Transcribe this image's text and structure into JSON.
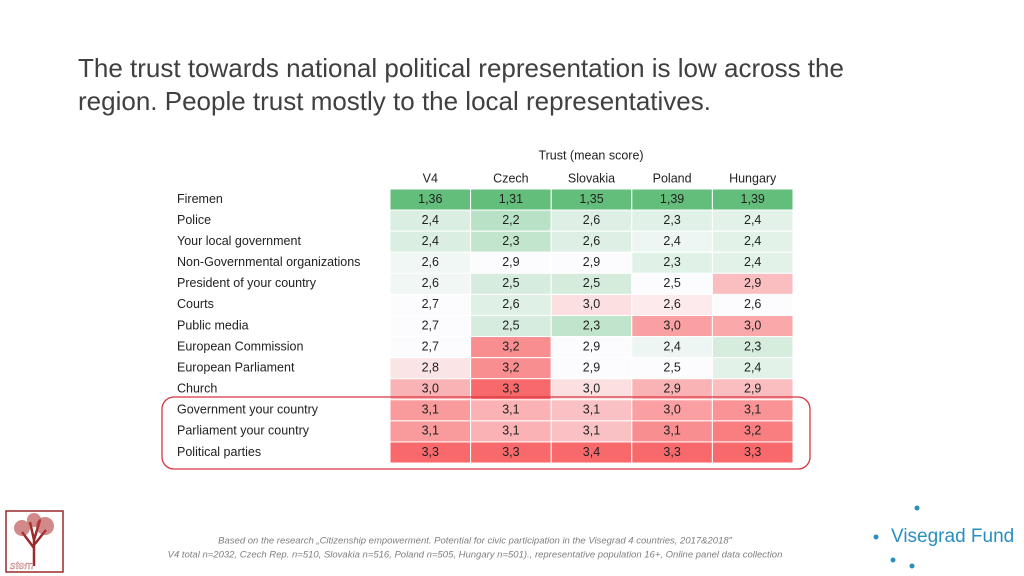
{
  "title": {
    "lines": [
      "The  trust towards national political representation is low across the",
      "region. People trust mostly to the local representatives."
    ]
  },
  "table": {
    "caption": "Trust (mean score)",
    "columns": [
      "V4",
      "Czech",
      "Slovakia",
      "Poland",
      "Hungary"
    ],
    "rows": [
      {
        "label": "Firemen",
        "cells": [
          "1,36",
          "1,31",
          "1,35",
          "1,39",
          "1,39"
        ]
      },
      {
        "label": "Police",
        "cells": [
          "2,4",
          "2,2",
          "2,6",
          "2,3",
          "2,4"
        ]
      },
      {
        "label": "Your local government",
        "cells": [
          "2,4",
          "2,3",
          "2,6",
          "2,4",
          "2,4"
        ]
      },
      {
        "label": "Non-Governmental organizations",
        "cells": [
          "2,6",
          "2,9",
          "2,9",
          "2,3",
          "2,4"
        ]
      },
      {
        "label": "President of your country",
        "cells": [
          "2,6",
          "2,5",
          "2,5",
          "2,5",
          "2,9"
        ]
      },
      {
        "label": "Courts",
        "cells": [
          "2,7",
          "2,6",
          "3,0",
          "2,6",
          "2,6"
        ]
      },
      {
        "label": "Public media",
        "cells": [
          "2,7",
          "2,5",
          "2,3",
          "3,0",
          "3,0"
        ]
      },
      {
        "label": "European Commission",
        "cells": [
          "2,7",
          "3,2",
          "2,9",
          "2,4",
          "2,3"
        ]
      },
      {
        "label": "European Parliament",
        "cells": [
          "2,8",
          "3,2",
          "2,9",
          "2,5",
          "2,4"
        ]
      },
      {
        "label": "Church",
        "cells": [
          "3,0",
          "3,3",
          "3,0",
          "2,9",
          "2,9"
        ]
      },
      {
        "label": "Government your country",
        "cells": [
          "3,1",
          "3,1",
          "3,1",
          "3,0",
          "3,1"
        ]
      },
      {
        "label": "Parliament your country",
        "cells": [
          "3,1",
          "3,1",
          "3,1",
          "3,1",
          "3,2"
        ]
      },
      {
        "label": "Political parties",
        "cells": [
          "3,3",
          "3,3",
          "3,4",
          "3,3",
          "3,3"
        ]
      }
    ]
  },
  "footnote": [
    "Based on the research „Citizenship empowerment. Potential for civic participation in the Visegrad 4 countries, 2017&2018”",
    "V4 total n=2032, Czech Rep. n=510, Slovakia n=516, Poland n=505, Hungary n=501)., representative population 16+, Online panel data collection"
  ],
  "logos": {
    "left": "stem",
    "right": "Visegrad Fund"
  }
}
